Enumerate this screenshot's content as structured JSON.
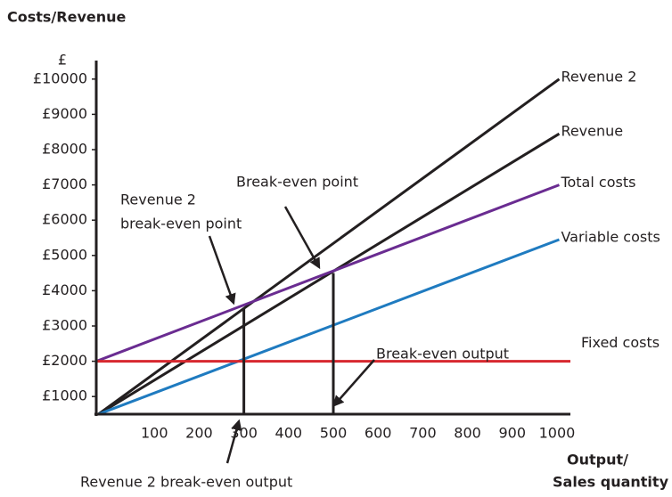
{
  "chart_data": {
    "type": "line",
    "title": "Costs/Revenue",
    "y_unit": "£",
    "xlabel": [
      "Output/",
      "Sales quantity"
    ],
    "xlim": [
      -30,
      1030
    ],
    "ylim": [
      500,
      10525
    ],
    "xticks": [
      100,
      200,
      300,
      400,
      500,
      600,
      700,
      800,
      900,
      1000
    ],
    "yticks": [
      {
        "value": 1000,
        "label": "£1000"
      },
      {
        "value": 2000,
        "label": "£2000"
      },
      {
        "value": 3000,
        "label": "£3000"
      },
      {
        "value": 4000,
        "label": "£4000"
      },
      {
        "value": 5000,
        "label": "£5000"
      },
      {
        "value": 6000,
        "label": "£6000"
      },
      {
        "value": 7000,
        "label": "£7000"
      },
      {
        "value": 8000,
        "label": "£8000"
      },
      {
        "value": 9000,
        "label": "£9000"
      },
      {
        "value": 10000,
        "label": "£10000"
      }
    ],
    "series": [
      {
        "name": "Revenue 2",
        "color": "#231f20",
        "x": [
          -25,
          1005
        ],
        "values": [
          500,
          10000
        ]
      },
      {
        "name": "Revenue",
        "color": "#231f20",
        "x": [
          -25,
          1005
        ],
        "values": [
          500,
          8450
        ]
      },
      {
        "name": "Total costs",
        "color": "#6a2c91",
        "x": [
          -30,
          1005
        ],
        "values": [
          2000,
          7000
        ]
      },
      {
        "name": "Variable costs",
        "color": "#1f7bc0",
        "x": [
          -25,
          1005
        ],
        "values": [
          500,
          5450
        ]
      },
      {
        "name": "Fixed costs",
        "color": "#d7282f",
        "x": [
          -30,
          1030
        ],
        "values": [
          2000,
          2000
        ]
      }
    ],
    "drop_lines": [
      {
        "x": 300,
        "y": 3500
      },
      {
        "x": 500,
        "y": 4500
      }
    ],
    "annotations": [
      {
        "text": [
          "Revenue 2",
          "break-even point"
        ]
      },
      {
        "text": [
          "Break-even point"
        ]
      },
      {
        "text": [
          "Break-even output"
        ]
      },
      {
        "text": [
          "Revenue 2 break-even output"
        ]
      }
    ]
  }
}
